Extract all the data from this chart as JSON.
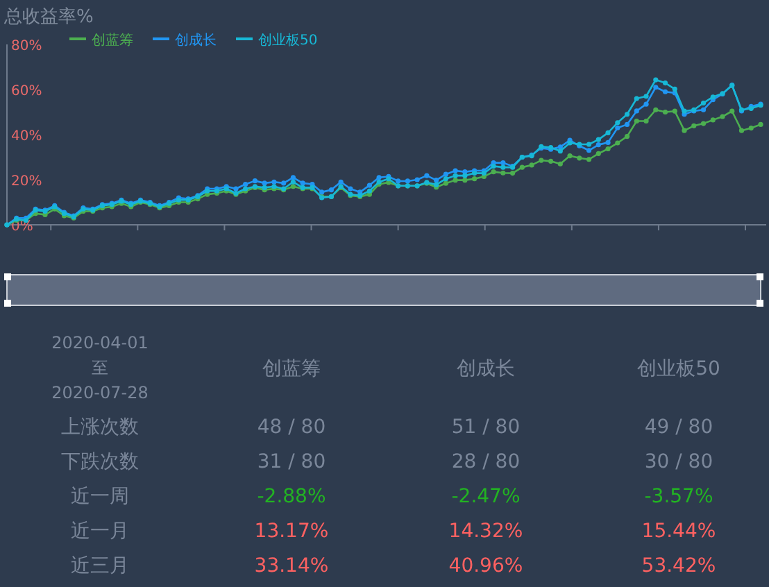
{
  "chart_data": [
    {
      "type": "line",
      "title": "总收益率%",
      "categories": [
        null,
        null,
        null,
        null,
        null,
        null,
        null,
        null,
        null,
        null,
        null,
        null,
        null,
        null,
        null,
        null,
        null,
        null,
        null,
        null,
        null,
        null,
        null,
        null,
        null,
        null,
        null,
        null,
        null,
        null,
        null,
        null,
        null,
        null,
        null,
        null,
        null,
        null,
        null,
        null,
        null,
        null,
        null,
        null,
        null,
        null,
        null,
        null,
        null,
        null,
        null,
        null,
        null,
        null,
        null,
        null,
        null,
        null,
        null,
        null,
        null,
        null,
        null,
        null,
        null,
        null,
        null,
        null,
        null,
        null,
        null,
        null,
        null,
        null,
        null,
        null,
        null,
        null,
        null,
        null
      ],
      "series": [
        {
          "name": "创蓝筹",
          "color": "#4caf50",
          "values": [
            0,
            2,
            2,
            5,
            4.5,
            7,
            4,
            3,
            6,
            6,
            7.5,
            8,
            9.5,
            8,
            10,
            9,
            7.5,
            8.5,
            10,
            10,
            11.5,
            13.5,
            14,
            15,
            13.5,
            15,
            16.5,
            15.5,
            16,
            15.5,
            17,
            16,
            16,
            12.5,
            12.5,
            16.5,
            13,
            12.5,
            13.5,
            18,
            18.8,
            17.3,
            17.3,
            17.3,
            18.4,
            16.7,
            18.4,
            19.8,
            19.8,
            20.4,
            21.4,
            23.5,
            23,
            22.9,
            25.5,
            26.5,
            28.6,
            28.2,
            27,
            30.6,
            29.6,
            29,
            31.6,
            33.7,
            36.3,
            39.2,
            46,
            46,
            51,
            50,
            50.4,
            41.8,
            43.9,
            44.9,
            46.5,
            48,
            50.4,
            41.8,
            42.9,
            44.5
          ]
        },
        {
          "name": "创成长",
          "color": "#2196f3",
          "values": [
            0,
            3,
            3,
            7,
            6.5,
            8.5,
            5.5,
            4,
            7.5,
            7,
            9,
            9.5,
            11,
            9.5,
            11,
            10,
            8.5,
            10,
            12,
            11.5,
            13,
            16,
            16,
            17,
            16,
            18,
            19.5,
            18.5,
            19,
            18.5,
            21,
            18.5,
            18,
            14.5,
            15.5,
            19,
            16,
            14.5,
            17.5,
            21,
            21.4,
            19.4,
            19.4,
            20,
            21.8,
            19.8,
            22.4,
            24,
            23.5,
            24,
            24,
            27.5,
            27.5,
            26,
            30,
            31,
            34,
            33.5,
            34.5,
            37.5,
            35,
            33,
            35.5,
            36.5,
            43,
            44.5,
            50.5,
            53.5,
            61,
            59,
            58.5,
            49,
            50.5,
            51,
            55.5,
            58,
            62,
            50.5,
            52.5,
            53.5
          ]
        },
        {
          "name": "创业板50",
          "color": "#17b8d6",
          "values": [
            0,
            2.5,
            2,
            6.5,
            6,
            8,
            5,
            3.5,
            7,
            6.5,
            8.5,
            9,
            10.5,
            9,
            10.5,
            9.5,
            8,
            9.5,
            11,
            11,
            12.5,
            15,
            15,
            16,
            14,
            16,
            17,
            16.5,
            17,
            16,
            19,
            16.5,
            16.5,
            12,
            12.5,
            17,
            13.5,
            13,
            15,
            19,
            20.4,
            17.3,
            17.3,
            17.3,
            18.8,
            17.8,
            20.4,
            21.8,
            21.8,
            22.9,
            22.9,
            26,
            25.5,
            25.5,
            30,
            30.6,
            34.7,
            34.3,
            32.7,
            36.3,
            35.7,
            35.7,
            37.8,
            40.8,
            45.3,
            49,
            56,
            57,
            64.3,
            62.9,
            60.2,
            50.4,
            51,
            54,
            56.7,
            58.2,
            61.8,
            51,
            51.6,
            53
          ]
        }
      ],
      "ylim": [
        0,
        80
      ],
      "yticks": [
        {
          "value": 0,
          "label": "0%"
        },
        {
          "value": 20,
          "label": "20%"
        },
        {
          "value": 40,
          "label": "40%"
        },
        {
          "value": 60,
          "label": "60%"
        },
        {
          "value": 80,
          "label": "80%"
        }
      ],
      "legend": "top left",
      "marker": "circle",
      "line_style": "solid",
      "grid": false
    },
    {
      "type": "other",
      "annotations": [
        "2020-04-01",
        "至",
        "2020-07-28"
      ],
      "categories": [
        "创蓝筹",
        "创成长",
        "创业板50"
      ],
      "y_categories": [
        "上涨次数",
        "下跌次数",
        "近一周",
        "近一月",
        "近三月"
      ],
      "cell_labels": [
        [
          "48 / 80",
          "51 / 80",
          "49 / 80"
        ],
        [
          "31 / 80",
          "28 / 80",
          "30 / 80"
        ],
        [
          "-2.88%",
          "-2.47%",
          "-3.57%"
        ],
        [
          "13.17%",
          "14.32%",
          "15.44%"
        ],
        [
          "33.14%",
          "40.96%",
          "53.42%"
        ]
      ],
      "colors": [
        "#7b879a",
        "#7b879a",
        "#22b322",
        "#ff6161",
        "#ff6161"
      ]
    }
  ]
}
